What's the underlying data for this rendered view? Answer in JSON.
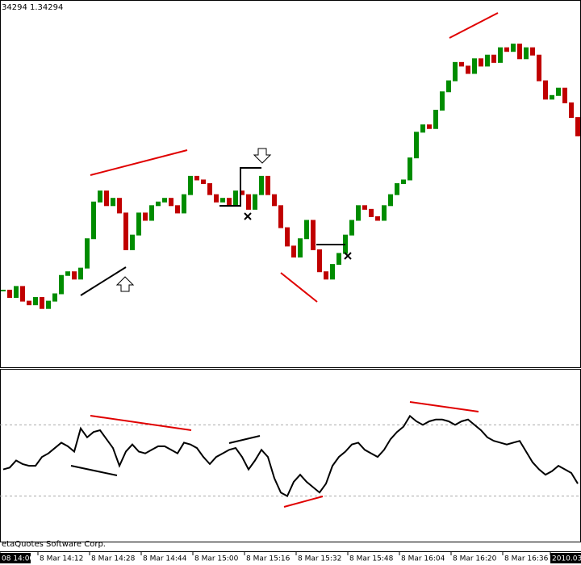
{
  "chart_data": [
    {
      "type": "candlestick",
      "title": "34294 1.34294",
      "ylim": [
        0,
        100
      ],
      "up_color": "#008c00",
      "down_color": "#c00000",
      "series": [
        {
          "name": "price",
          "values": [
            21,
            19,
            22,
            18,
            17,
            19,
            16,
            18,
            20,
            25,
            26,
            24,
            27,
            35,
            45,
            48,
            44,
            46,
            42,
            32,
            36,
            42,
            40,
            44,
            45,
            46,
            44,
            42,
            47,
            52,
            51,
            50,
            47,
            45,
            46,
            44,
            48,
            47,
            43,
            47,
            52,
            47,
            44,
            38,
            33,
            30,
            35,
            40,
            32,
            26,
            24,
            28,
            31,
            36,
            40,
            44,
            43,
            41,
            40,
            44,
            47,
            50,
            51,
            57,
            64,
            66,
            65,
            70,
            75,
            78,
            83,
            82,
            80,
            84,
            82,
            85,
            83,
            87,
            86,
            88,
            84,
            87,
            85,
            78,
            73,
            74,
            76,
            72,
            68,
            63
          ]
        }
      ]
    },
    {
      "type": "line",
      "ylim": [
        4,
        101
      ],
      "levels": [
        30,
        70
      ],
      "color": "#000000",
      "series": [
        {
          "name": "oscillator",
          "values": [
            45,
            46,
            50,
            48,
            47,
            47,
            52,
            54,
            57,
            60,
            58,
            55,
            68,
            63,
            66,
            67,
            62,
            57,
            47,
            55,
            59,
            55,
            54,
            56,
            58,
            58,
            56,
            54,
            60,
            59,
            57,
            52,
            48,
            52,
            54,
            56,
            57,
            52,
            45,
            50,
            56,
            52,
            40,
            32,
            30,
            38,
            42,
            38,
            35,
            32,
            37,
            47,
            52,
            55,
            59,
            60,
            56,
            54,
            52,
            56,
            62,
            66,
            69,
            75,
            72,
            70,
            72,
            73,
            73,
            72,
            70,
            72,
            73,
            70,
            67,
            63,
            61,
            60,
            59,
            60,
            61,
            55,
            49,
            45,
            42,
            44,
            47,
            45,
            43,
            37
          ]
        }
      ]
    }
  ],
  "time_labels": [
    "08 14:00",
    "8 Mar 14:12",
    "8 Mar 14:28",
    "8 Mar 14:44",
    "8 Mar 15:00",
    "8 Mar 15:16",
    "8 Mar 15:32",
    "8 Mar 15:48",
    "8 Mar 16:04",
    "8 Mar 16:20",
    "8 Mar 16:36",
    "2010.03"
  ],
  "footer": "etaQuotes Software Corp."
}
